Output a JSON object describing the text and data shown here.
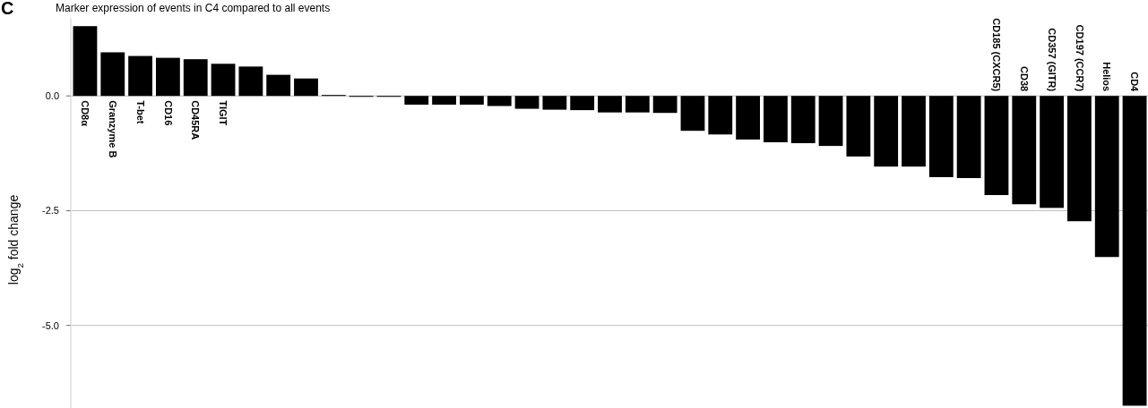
{
  "chart_data": {
    "type": "bar",
    "title": "Marker expression of events in C4 compared to all events",
    "ylabel": "log$_{2}$ fold change",
    "annotations": [
      "C"
    ],
    "categories": [
      "CD8α",
      "Granzyme B",
      "T-bet",
      "CD16",
      "CD45RA",
      "TIGIT",
      null,
      null,
      null,
      null,
      null,
      null,
      null,
      null,
      null,
      null,
      null,
      null,
      null,
      null,
      null,
      null,
      null,
      null,
      null,
      null,
      null,
      null,
      null,
      null,
      null,
      null,
      null,
      "CD185 (CXCR5)",
      "CD38",
      "CD357 (GITR)",
      "CD197 (CCR7)",
      "Helios",
      "CD4"
    ],
    "values": [
      1.52,
      0.95,
      0.87,
      0.83,
      0.8,
      0.7,
      0.64,
      0.46,
      0.38,
      0.02,
      -0.02,
      -0.02,
      -0.19,
      -0.19,
      -0.19,
      -0.22,
      -0.28,
      -0.3,
      -0.31,
      -0.36,
      -0.36,
      -0.37,
      -0.76,
      -0.84,
      -0.95,
      -1.01,
      -1.03,
      -1.09,
      -1.32,
      -1.54,
      -1.54,
      -1.77,
      -1.79,
      -2.16,
      -2.36,
      -2.44,
      -2.73,
      -3.51,
      -6.75
    ],
    "color": "#000000",
    "ylim": [
      -6.8,
      1.7
    ],
    "yticks": [
      {
        "value": 0,
        "label": "0.0"
      },
      {
        "value": -2.5,
        "label": "-2.5"
      },
      {
        "value": -5,
        "label": "-5.0"
      }
    ],
    "grid": "y"
  }
}
